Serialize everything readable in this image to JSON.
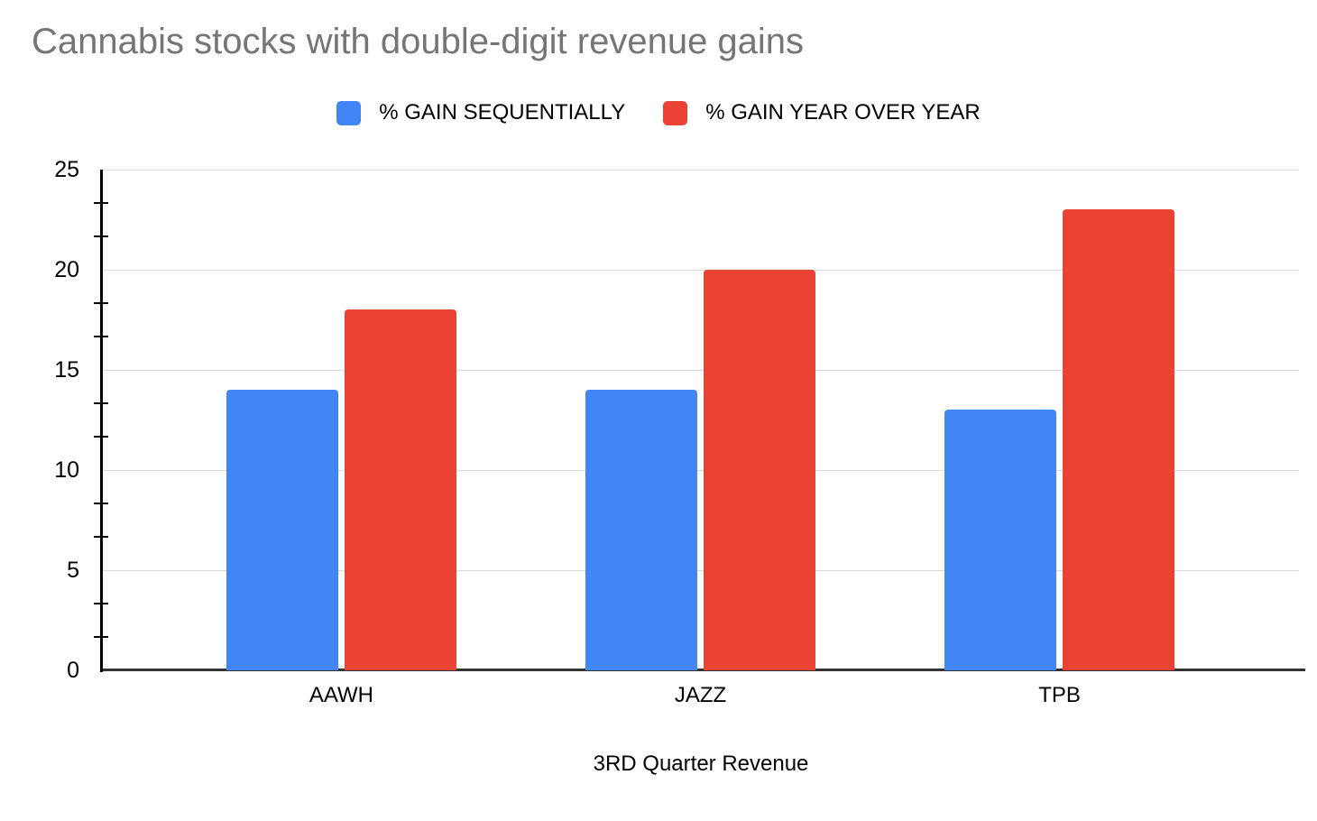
{
  "title": "Cannabis stocks with double-digit revenue gains",
  "chart_data": {
    "type": "bar",
    "categories": [
      "AAWH",
      "JAZZ",
      "TPB"
    ],
    "series": [
      {
        "name": "% GAIN SEQUENTIALLY",
        "color": "#4285F4",
        "values": [
          14,
          14,
          13
        ]
      },
      {
        "name": "% GAIN YEAR OVER YEAR",
        "color": "#EA4335",
        "values": [
          18,
          20,
          23
        ]
      }
    ],
    "xlabel": "3RD Quarter Revenue",
    "ylabel": "",
    "ylim": [
      0,
      25
    ],
    "y_major_ticks": [
      0,
      5,
      10,
      15,
      20,
      25
    ],
    "y_minor_ticks_per_interval": 2,
    "grid": "horizontal-major",
    "legend_position": "top"
  },
  "style": {
    "title_color": "#757575",
    "text_color": "#000000",
    "gridline_color": "#D9D9D9",
    "axis_color": "#000000",
    "baseline_color": "#333333",
    "background": "#FFFFFF",
    "series_blue": "#4285F4",
    "series_red": "#EA4335"
  }
}
